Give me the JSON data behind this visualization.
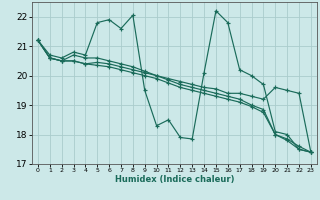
{
  "title": "",
  "xlabel": "Humidex (Indice chaleur)",
  "ylabel": "",
  "xlim": [
    -0.5,
    23.5
  ],
  "ylim": [
    17.0,
    22.5
  ],
  "xticks": [
    0,
    1,
    2,
    3,
    4,
    5,
    6,
    7,
    8,
    9,
    10,
    11,
    12,
    13,
    14,
    15,
    16,
    17,
    18,
    19,
    20,
    21,
    22,
    23
  ],
  "yticks": [
    17,
    18,
    19,
    20,
    21,
    22
  ],
  "bg_color": "#cce8e8",
  "line_color": "#1a6b5a",
  "grid_color": "#aacccc",
  "series": [
    [
      21.2,
      20.7,
      20.6,
      20.8,
      20.7,
      21.8,
      21.9,
      21.6,
      22.05,
      19.5,
      18.3,
      18.5,
      17.9,
      17.85,
      20.1,
      22.2,
      21.8,
      20.2,
      20.0,
      19.7,
      18.1,
      18.0,
      17.5,
      17.4
    ],
    [
      21.2,
      20.6,
      20.5,
      20.7,
      20.6,
      20.6,
      20.5,
      20.4,
      20.3,
      20.15,
      20.0,
      19.9,
      19.8,
      19.7,
      19.6,
      19.55,
      19.4,
      19.4,
      19.3,
      19.2,
      19.6,
      19.5,
      19.4,
      17.4
    ],
    [
      21.2,
      20.6,
      20.5,
      20.5,
      20.4,
      20.45,
      20.4,
      20.3,
      20.2,
      20.1,
      20.0,
      19.85,
      19.7,
      19.6,
      19.5,
      19.4,
      19.3,
      19.2,
      19.0,
      18.85,
      18.0,
      17.85,
      17.6,
      17.4
    ],
    [
      21.2,
      20.6,
      20.5,
      20.5,
      20.4,
      20.35,
      20.3,
      20.2,
      20.1,
      20.0,
      19.9,
      19.75,
      19.6,
      19.5,
      19.4,
      19.3,
      19.2,
      19.1,
      18.95,
      18.75,
      18.0,
      17.8,
      17.5,
      17.4
    ]
  ]
}
